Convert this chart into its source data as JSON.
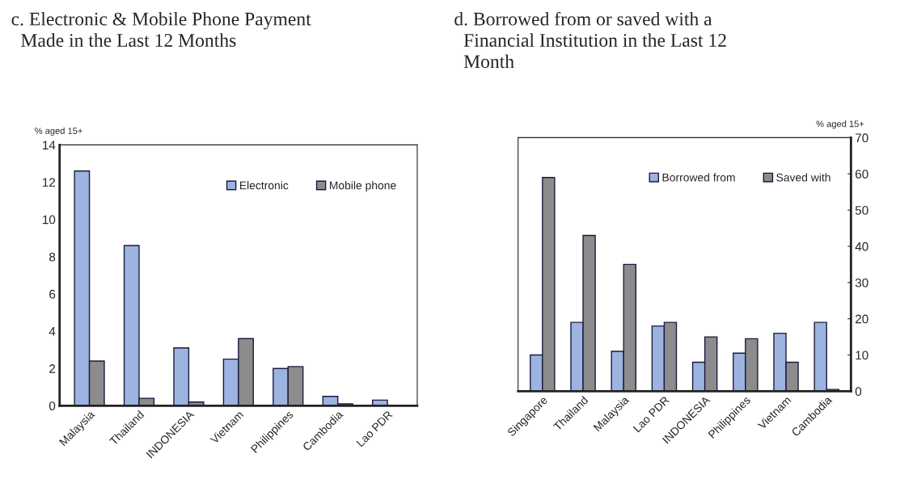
{
  "chart_data": [
    {
      "type": "bar",
      "title": "c. Electronic & Mobile Phone Payment\n  Made in the Last 12 Months",
      "ylabel": "% aged 15+",
      "categories": [
        "Malaysia",
        "Thailand",
        "INDONESIA",
        "Vietnam",
        "Philippines",
        "Cambodia",
        "Lao PDR"
      ],
      "series": [
        {
          "name": "Electronic",
          "color": "#9db3e0",
          "values": [
            12.6,
            8.6,
            3.1,
            2.5,
            2.0,
            0.5,
            0.3
          ]
        },
        {
          "name": "Mobile phone",
          "color": "#8c8c8c",
          "values": [
            2.4,
            0.4,
            0.2,
            3.6,
            2.1,
            0.1,
            null
          ]
        }
      ],
      "ylim": [
        0,
        14
      ],
      "yticks": [
        0,
        2,
        4,
        6,
        8,
        10,
        12,
        14
      ],
      "legend": "top right",
      "grid": false
    },
    {
      "type": "bar",
      "title": "d. Borrowed from or saved with a\n  Financial Institution in the Last 12\n  Month",
      "ylabel": "% aged 15+",
      "categories": [
        "Singapore",
        "Thailand",
        "Malaysia",
        "Lao PDR",
        "INDONESIA",
        "Philippines",
        "Vietnam",
        "Cambodia"
      ],
      "series": [
        {
          "name": "Borrowed from",
          "color": "#9db3e0",
          "values": [
            10,
            19,
            11,
            18,
            8,
            10.5,
            16,
            19
          ]
        },
        {
          "name": "Saved with",
          "color": "#8c8c8c",
          "values": [
            59,
            43,
            35,
            19,
            15,
            14.5,
            8,
            0.5
          ]
        }
      ],
      "ylim": [
        0,
        70
      ],
      "yticks": [
        0,
        10,
        20,
        30,
        40,
        50,
        60,
        70
      ],
      "legend": "top right",
      "grid": false
    }
  ]
}
